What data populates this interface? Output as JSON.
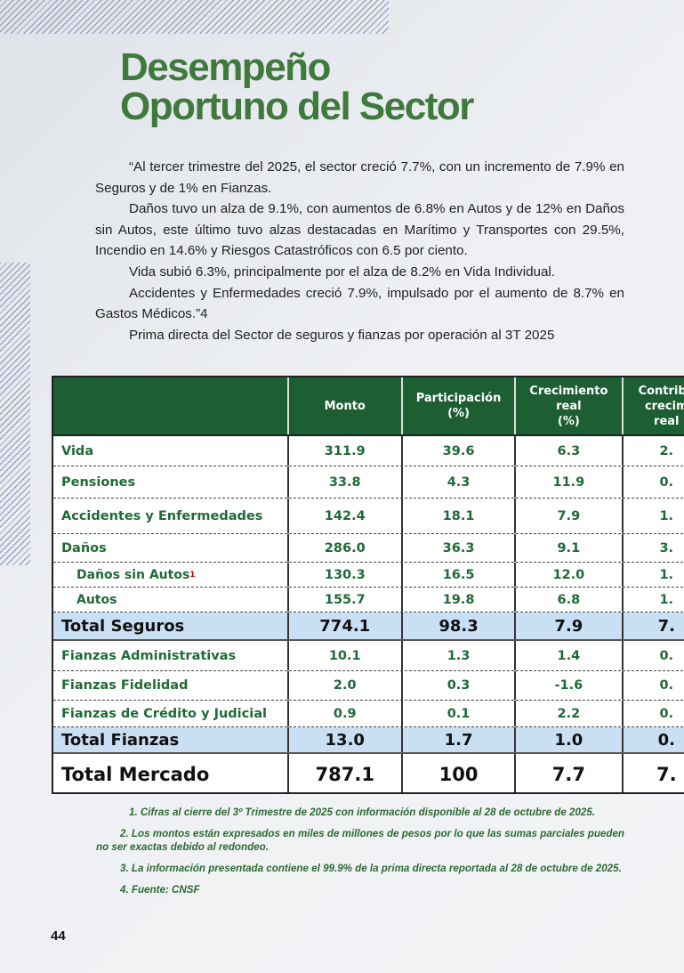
{
  "title": [
    "Desempeño",
    "Oportuno del Sector"
  ],
  "paragraphs": [
    "“Al tercer trimestre del 2025, el sector creció 7.7%, con un incremento de 7.9% en Seguros y de 1% en Fianzas.",
    "Daños tuvo un alza de 9.1%, con aumentos de 6.8% en Autos y de 12% en Daños sin Autos, este último tuvo alzas destacadas en Marítimo y Transportes con 29.5%, Incendio en 14.6% y Riesgos Catastróficos con 6.5 por ciento.",
    "Vida subió 6.3%, principalmente por el alza de 8.2% en Vida Individual.",
    "Accidentes y Enfermedades creció 7.9%, impulsado por el aumento de 8.7% en Gastos Médicos.”4",
    "Prima directa del Sector de seguros y fianzas por operación al 3T 2025"
  ],
  "table": {
    "headers": [
      "",
      "Monto",
      "Participación\n(%)",
      "Crecimiento\nreal\n(%)",
      "Contribu\ncrecim\nreal"
    ],
    "rows": [
      {
        "label": "Vida",
        "values": [
          "311.9",
          "39.6",
          "6.3",
          "2."
        ],
        "type": "normal"
      },
      {
        "label": "Pensiones",
        "values": [
          "33.8",
          "4.3",
          "11.9",
          "0."
        ],
        "type": "normal"
      },
      {
        "label": "Accidentes y Enfermedades",
        "values": [
          "142.4",
          "18.1",
          "7.9",
          "1."
        ],
        "type": "normal"
      },
      {
        "label": "Daños",
        "values": [
          "286.0",
          "36.3",
          "9.1",
          "3."
        ],
        "type": "normal"
      },
      {
        "label": "Daños sin Autos",
        "sup": "1",
        "values": [
          "130.3",
          "16.5",
          "12.0",
          "1."
        ],
        "type": "sub"
      },
      {
        "label": "Autos",
        "values": [
          "155.7",
          "19.8",
          "6.8",
          "1."
        ],
        "type": "sub"
      },
      {
        "label": "Total Seguros",
        "values": [
          "774.1",
          "98.3",
          "7.9",
          "7."
        ],
        "type": "total"
      },
      {
        "label": "Fianzas Administrativas",
        "values": [
          "10.1",
          "1.3",
          "1.4",
          "0."
        ],
        "type": "normal"
      },
      {
        "label": "Fianzas Fidelidad",
        "values": [
          "2.0",
          "0.3",
          "-1.6",
          "0."
        ],
        "type": "normal"
      },
      {
        "label": "Fianzas de Crédito y Judicial",
        "values": [
          "0.9",
          "0.1",
          "2.2",
          "0."
        ],
        "type": "normal"
      },
      {
        "label": "Total Fianzas",
        "values": [
          "13.0",
          "1.7",
          "1.0",
          "0."
        ],
        "type": "total"
      },
      {
        "label": "Total Mercado",
        "values": [
          "787.1",
          "100",
          "7.7",
          "7."
        ],
        "type": "grand"
      }
    ]
  },
  "notes": [
    "1. Cifras al cierre del 3º Trimestre de 2025 con información disponible al 28 de octubre de 2025.",
    "2. Los montos están expresados en miles de millones de pesos por lo que las sumas parciales pueden no ser exactas debido al redondeo.",
    "3. La información presentada contiene el 99.9% de la prima directa reportada al 28 de octubre de 2025.",
    "4. Fuente: CNSF"
  ],
  "page_number": "44"
}
